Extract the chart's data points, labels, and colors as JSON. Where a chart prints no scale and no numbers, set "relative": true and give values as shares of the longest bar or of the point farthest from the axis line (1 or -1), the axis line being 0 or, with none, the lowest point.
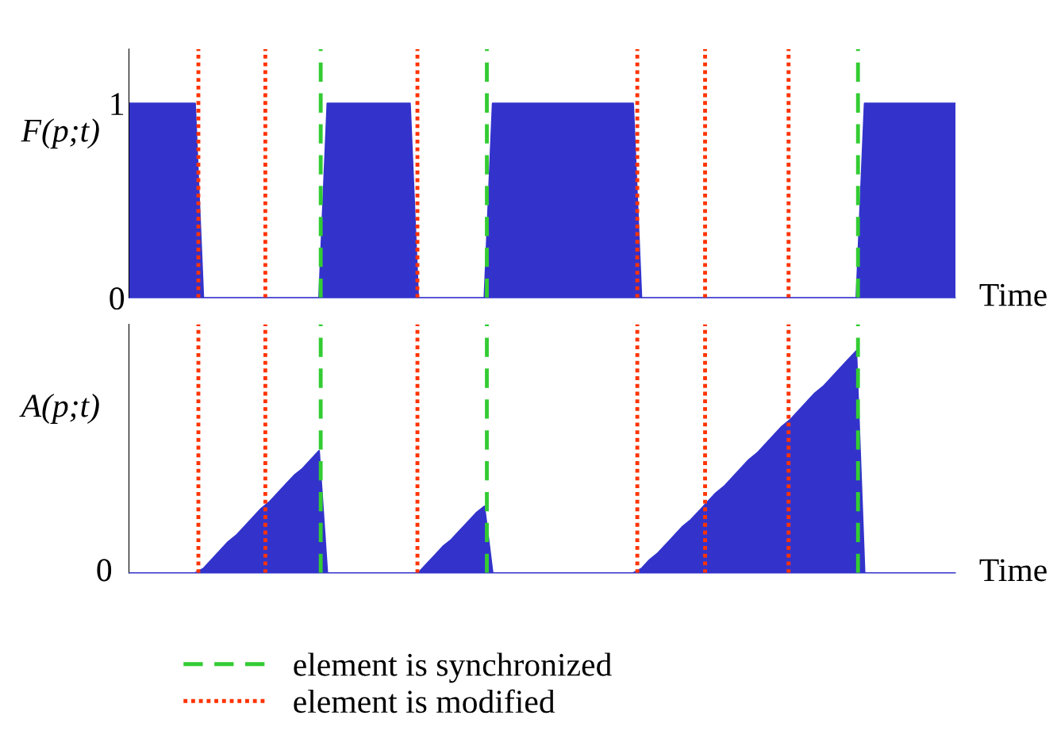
{
  "chart_data": [
    {
      "type": "area",
      "ylabel": "F(p;t)",
      "xlabel": "Time",
      "ylim": [
        0,
        1.28
      ],
      "yticks": [
        0,
        1
      ],
      "tick_labels": "y",
      "grid": false,
      "categories": [
        null,
        null,
        null,
        null,
        null,
        null,
        null,
        null,
        null,
        null,
        null,
        null,
        null,
        null,
        null,
        null,
        null,
        null,
        null,
        null,
        null,
        null,
        null,
        null,
        null,
        null,
        null,
        null,
        null,
        null,
        null,
        null,
        null,
        null,
        null,
        null,
        null,
        null,
        null,
        null,
        null,
        null,
        null,
        null,
        null,
        null,
        null,
        null,
        null,
        null,
        null,
        null,
        null,
        null,
        null,
        null,
        null,
        null,
        null,
        null,
        null,
        null,
        null,
        null,
        null,
        null,
        null,
        null,
        null,
        null,
        null,
        null,
        null,
        null,
        null,
        null,
        null,
        null,
        null,
        null,
        null,
        null,
        null,
        null,
        null,
        null,
        null,
        null,
        null,
        null,
        null,
        null,
        null,
        null,
        null,
        null,
        null,
        null,
        null,
        null,
        null
      ],
      "series": [
        {
          "color": "#3333cc",
          "values": [
            1,
            1,
            1,
            1,
            1,
            1,
            1,
            1,
            1,
            0,
            0,
            0,
            0,
            0,
            0,
            0,
            0,
            0,
            0,
            0,
            0,
            0,
            0,
            0,
            1,
            1,
            1,
            1,
            1,
            1,
            1,
            1,
            1,
            1,
            1,
            0,
            0,
            0,
            0,
            0,
            0,
            0,
            0,
            0,
            1,
            1,
            1,
            1,
            1,
            1,
            1,
            1,
            1,
            1,
            1,
            1,
            1,
            1,
            1,
            1,
            1,
            1,
            0,
            0,
            0,
            0,
            0,
            0,
            0,
            0,
            0,
            0,
            0,
            0,
            0,
            0,
            0,
            0,
            0,
            0,
            0,
            0,
            0,
            0,
            0,
            0,
            0,
            0,
            0,
            1,
            1,
            1,
            1,
            1,
            1,
            1,
            1,
            1,
            1,
            1,
            1
          ]
        }
      ]
    },
    {
      "type": "area",
      "ylabel": "A(p;t)",
      "xlabel": "Time",
      "relative": true,
      "tick_labels": false,
      "grid": false,
      "annotations": [
        "0",
        "element is synchronized",
        "element is modified"
      ],
      "categories": [
        null,
        null,
        null,
        null,
        null,
        null,
        null,
        null,
        null,
        null,
        null,
        null,
        null,
        null,
        null,
        null,
        null,
        null,
        null,
        null,
        null,
        null,
        null,
        null,
        null,
        null,
        null,
        null,
        null,
        null,
        null,
        null,
        null,
        null,
        null,
        null,
        null,
        null,
        null,
        null,
        null,
        null,
        null,
        null,
        null,
        null,
        null,
        null,
        null,
        null,
        null,
        null,
        null,
        null,
        null,
        null,
        null,
        null,
        null,
        null,
        null,
        null,
        null,
        null,
        null,
        null,
        null,
        null,
        null,
        null,
        null,
        null,
        null,
        null,
        null,
        null,
        null,
        null,
        null,
        null,
        null,
        null,
        null,
        null,
        null,
        null,
        null,
        null,
        null,
        null,
        null,
        null,
        null,
        null,
        null,
        null,
        null,
        null,
        null,
        null,
        null
      ],
      "series": [
        {
          "color": "#3333cc",
          "values": [
            0,
            0,
            0,
            0,
            0,
            0,
            0,
            0,
            0,
            0.02,
            0.06,
            0.1,
            0.14,
            0.17,
            0.21,
            0.25,
            0.29,
            0.32,
            0.36,
            0.4,
            0.44,
            0.47,
            0.51,
            0.55,
            0,
            0,
            0,
            0,
            0,
            0,
            0,
            0,
            0,
            0,
            0,
            0.0,
            0.04,
            0.08,
            0.12,
            0.15,
            0.19,
            0.23,
            0.27,
            0.3,
            0,
            0,
            0,
            0,
            0,
            0,
            0,
            0,
            0,
            0,
            0,
            0,
            0,
            0,
            0,
            0,
            0,
            0,
            0.02,
            0.06,
            0.09,
            0.13,
            0.17,
            0.21,
            0.24,
            0.28,
            0.32,
            0.36,
            0.39,
            0.43,
            0.47,
            0.51,
            0.54,
            0.58,
            0.62,
            0.66,
            0.69,
            0.73,
            0.77,
            0.81,
            0.84,
            0.88,
            0.92,
            0.96,
            1,
            0,
            0,
            0,
            0,
            0,
            0,
            0,
            0,
            0,
            0,
            0,
            0
          ]
        }
      ]
    }
  ]
}
